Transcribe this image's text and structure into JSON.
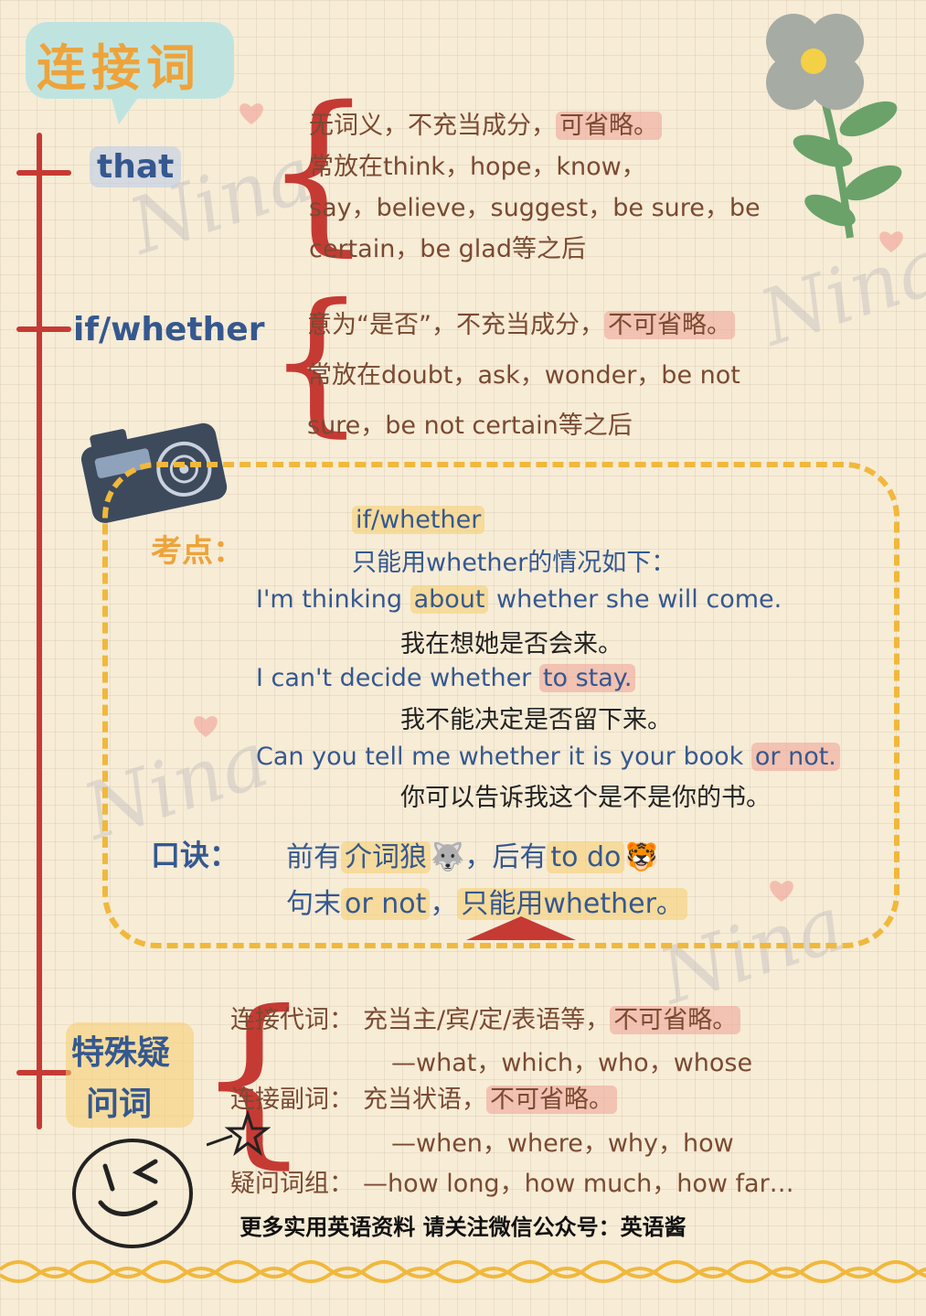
{
  "title": "连接词",
  "that": {
    "label": "that",
    "lines": [
      {
        "pre": "无词义，不充当成分，",
        "hl": "可省略。"
      },
      {
        "pre": "常放在think，hope，know，",
        "hl": ""
      },
      {
        "pre": "say，believe，suggest，be sure，be",
        "hl": ""
      },
      {
        "pre": "certain，be glad等之后",
        "hl": ""
      }
    ]
  },
  "ifwhether": {
    "label": "if/whether",
    "lines": [
      {
        "pre": "意为“是否”，不充当成分，",
        "hl": "不可省略。"
      },
      {
        "pre": "常放在doubt，ask，wonder，be not",
        "hl": ""
      },
      {
        "pre": "sure，be not certain等之后",
        "hl": ""
      }
    ]
  },
  "kaodian": {
    "label": "考点：",
    "intro1": "if/whether",
    "intro2": "只能用whether的情况如下：",
    "examples": [
      {
        "en_pre": "I'm thinking ",
        "en_hl": "about",
        "en_post": " whether she will come.",
        "hl_type": "yel",
        "zh": "我在想她是否会来。"
      },
      {
        "en_pre": "I can't decide whether ",
        "en_hl": "to stay.",
        "en_post": "",
        "hl_type": "pink",
        "zh": "我不能决定是否留下来。"
      },
      {
        "en_pre": "Can you tell me whether it is your book ",
        "en_hl": "or not.",
        "en_post": "",
        "hl_type": "pink",
        "zh": "你可以告诉我这个是不是你的书。"
      }
    ],
    "koujue_label": "口诀：",
    "koujue1_pre": "前有",
    "koujue1_hl": "介词狼",
    "koujue1_icon": "🐺",
    "koujue1_mid": "，后有",
    "koujue1_hl2": "to do",
    "koujue1_icon2": "🐯",
    "koujue2_pre": "句末",
    "koujue2_hl": "or not",
    "koujue2_mid": "，",
    "koujue2_hl2": "只能用whether。"
  },
  "special": {
    "label1": "特殊疑",
    "label2": "问词",
    "rows": [
      {
        "head": "连接代词：",
        "text": "充当主/宾/定/表语等，",
        "hl": "不可省略。"
      },
      {
        "head": "",
        "text": "—what，which，who，whose",
        "hl": ""
      },
      {
        "head": "连接副词：",
        "text": "充当状语，",
        "hl": "不可省略。"
      },
      {
        "head": "",
        "text": "—when，where，why，how",
        "hl": ""
      },
      {
        "head": "疑问词组：",
        "text": "—how long，how much，how far…",
        "hl": ""
      }
    ]
  },
  "watermark": "Nina",
  "footer": "更多实用英语资料 请关注微信公众号：英语酱",
  "colors": {
    "red": "#c63a34",
    "blue": "#35588f",
    "brown": "#7a4a32",
    "yellow": "#f0b83c",
    "teal": "#bfe4e0"
  }
}
